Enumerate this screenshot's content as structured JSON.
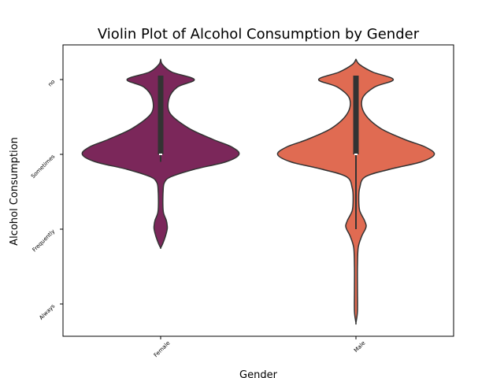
{
  "chart_data": {
    "type": "violin",
    "title": "Violin Plot of Alcohol Consumption by Gender",
    "xlabel": "Gender",
    "ylabel": "Alcohol Consumption",
    "categories": [
      "Female",
      "Male"
    ],
    "y_categories": [
      "no",
      "Sometimes",
      "Frequently",
      "Always"
    ],
    "grid": false,
    "series": [
      {
        "category": "Female",
        "color": "#7b275a",
        "profile": [
          [
            -0.27,
            0.0
          ],
          [
            -0.2,
            0.01
          ],
          [
            -0.1,
            0.06
          ],
          [
            0.0,
            0.18
          ],
          [
            0.1,
            0.09
          ],
          [
            0.25,
            0.045
          ],
          [
            0.45,
            0.05
          ],
          [
            0.65,
            0.15
          ],
          [
            0.8,
            0.28
          ],
          [
            0.9,
            0.38
          ],
          [
            1.0,
            0.42
          ],
          [
            1.1,
            0.35
          ],
          [
            1.2,
            0.18
          ],
          [
            1.3,
            0.055
          ],
          [
            1.38,
            0.02
          ],
          [
            1.5,
            0.013
          ],
          [
            1.65,
            0.012
          ],
          [
            1.78,
            0.015
          ],
          [
            1.88,
            0.03
          ],
          [
            1.95,
            0.035
          ],
          [
            2.0,
            0.035
          ],
          [
            2.1,
            0.025
          ],
          [
            2.2,
            0.01
          ],
          [
            2.25,
            0.0
          ]
        ],
        "q1": 0.0,
        "median": 1.0,
        "q3": 1.0,
        "whisker_low": 0.0,
        "whisker_high": 1.1
      },
      {
        "category": "Male",
        "color": "#e06b52",
        "profile": [
          [
            -0.27,
            0.0
          ],
          [
            -0.2,
            0.02
          ],
          [
            -0.1,
            0.09
          ],
          [
            0.0,
            0.2
          ],
          [
            0.1,
            0.1
          ],
          [
            0.25,
            0.035
          ],
          [
            0.45,
            0.045
          ],
          [
            0.65,
            0.13
          ],
          [
            0.8,
            0.26
          ],
          [
            0.9,
            0.37
          ],
          [
            1.0,
            0.42
          ],
          [
            1.1,
            0.35
          ],
          [
            1.2,
            0.18
          ],
          [
            1.3,
            0.05
          ],
          [
            1.45,
            0.02
          ],
          [
            1.6,
            0.015
          ],
          [
            1.75,
            0.02
          ],
          [
            1.88,
            0.045
          ],
          [
            1.95,
            0.055
          ],
          [
            2.0,
            0.05
          ],
          [
            2.1,
            0.03
          ],
          [
            2.25,
            0.012
          ],
          [
            2.5,
            0.008
          ],
          [
            2.8,
            0.008
          ],
          [
            3.1,
            0.008
          ],
          [
            3.25,
            0.0
          ]
        ],
        "q1": 0.0,
        "median": 1.0,
        "q3": 1.0,
        "whisker_low": 0.0,
        "whisker_high": 2.0
      }
    ]
  }
}
